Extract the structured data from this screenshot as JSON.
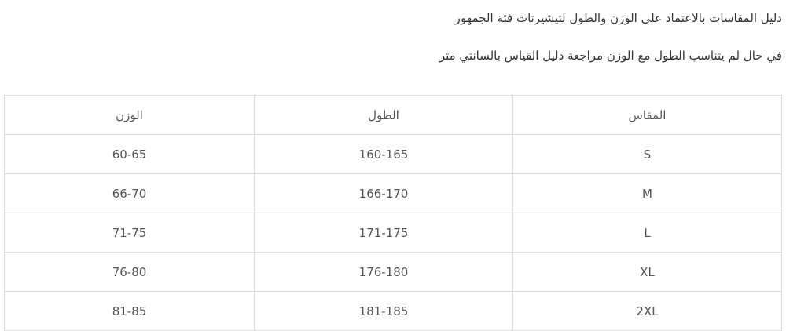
{
  "intro": "دليل المقاسات بالاعتماد على الوزن والطول لتيشيرتات فئة الجمهور",
  "note": "في حال لم يتناسب الطول مع الوزن مراجعة دليل القياس بالسانتي متر",
  "table": {
    "headers": [
      "المقاس",
      "الطول",
      "الوزن"
    ],
    "rows": [
      [
        "S",
        "160-165",
        "60-65"
      ],
      [
        "M",
        "166-170",
        "66-70"
      ],
      [
        "L",
        "171-175",
        "71-75"
      ],
      [
        "XL",
        "176-180",
        "76-80"
      ],
      [
        "2XL",
        "181-185",
        "81-85"
      ]
    ]
  }
}
